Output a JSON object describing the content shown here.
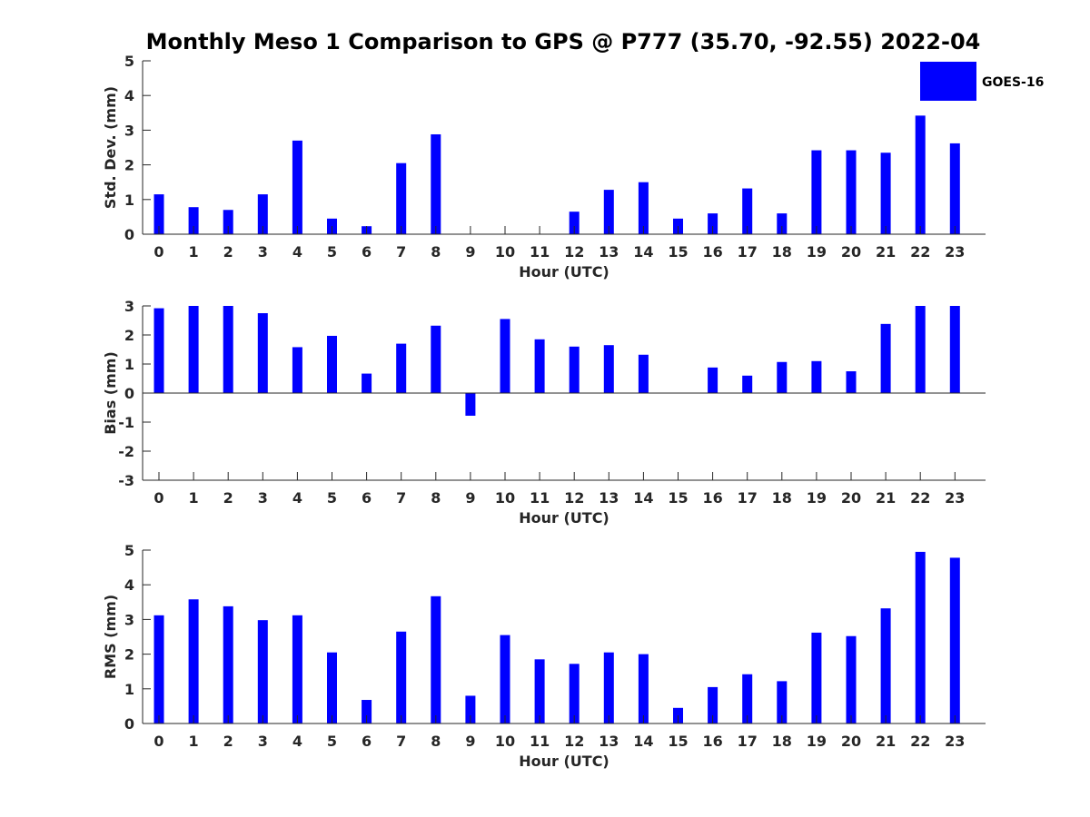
{
  "chart_data": {
    "type": "bar",
    "title": "Monthly Meso 1 Comparison to GPS @ P777 (35.70, -92.55) 2022-04",
    "legend": {
      "entries": [
        "GOES-16"
      ],
      "position": "top-right"
    },
    "colors": {
      "bar": "#0000ff",
      "axis": "#262626",
      "title": "#000000"
    },
    "panels": [
      {
        "xlabel": "Hour (UTC)",
        "ylabel": "Std. Dev. (mm)",
        "ylim": [
          0,
          5
        ],
        "yticks": [
          0,
          1,
          2,
          3,
          4,
          5
        ],
        "categories": [
          "0",
          "1",
          "2",
          "3",
          "4",
          "5",
          "6",
          "7",
          "8",
          "9",
          "10",
          "11",
          "12",
          "13",
          "14",
          "15",
          "16",
          "17",
          "18",
          "19",
          "20",
          "21",
          "22",
          "23"
        ],
        "series": [
          {
            "name": "GOES-16",
            "values": [
              1.15,
              0.78,
              0.7,
              1.15,
              2.7,
              0.45,
              0.23,
              2.05,
              2.88,
              0,
              0,
              0,
              0.65,
              1.28,
              1.5,
              0.45,
              0.6,
              1.32,
              0.6,
              2.42,
              2.42,
              2.35,
              3.42,
              2.62
            ]
          }
        ],
        "grid": false
      },
      {
        "xlabel": "Hour (UTC)",
        "ylabel": "Bias (mm)",
        "ylim": [
          -3,
          3
        ],
        "yticks": [
          -3,
          -2,
          -1,
          0,
          1,
          2,
          3
        ],
        "categories": [
          "0",
          "1",
          "2",
          "3",
          "4",
          "5",
          "6",
          "7",
          "8",
          "9",
          "10",
          "11",
          "12",
          "13",
          "14",
          "15",
          "16",
          "17",
          "18",
          "19",
          "20",
          "21",
          "22",
          "23"
        ],
        "series": [
          {
            "name": "GOES-16",
            "values": [
              2.92,
              3.0,
              3.0,
              2.75,
              1.58,
              1.97,
              0.67,
              1.7,
              2.32,
              -0.78,
              2.55,
              1.85,
              1.6,
              1.65,
              1.32,
              0,
              0.88,
              0.6,
              1.07,
              1.1,
              0.75,
              2.38,
              3.0,
              3.0
            ]
          }
        ],
        "grid": false
      },
      {
        "xlabel": "Hour (UTC)",
        "ylabel": "RMS (mm)",
        "ylim": [
          0,
          5
        ],
        "yticks": [
          0,
          1,
          2,
          3,
          4,
          5
        ],
        "categories": [
          "0",
          "1",
          "2",
          "3",
          "4",
          "5",
          "6",
          "7",
          "8",
          "9",
          "10",
          "11",
          "12",
          "13",
          "14",
          "15",
          "16",
          "17",
          "18",
          "19",
          "20",
          "21",
          "22",
          "23"
        ],
        "series": [
          {
            "name": "GOES-16",
            "values": [
              3.12,
              3.58,
              3.38,
              2.98,
              3.12,
              2.05,
              0.68,
              2.65,
              3.67,
              0.8,
              2.55,
              1.85,
              1.72,
              2.05,
              2.0,
              0.45,
              1.05,
              1.42,
              1.22,
              2.62,
              2.52,
              3.32,
              4.95,
              4.78
            ]
          }
        ],
        "grid": false
      }
    ]
  }
}
